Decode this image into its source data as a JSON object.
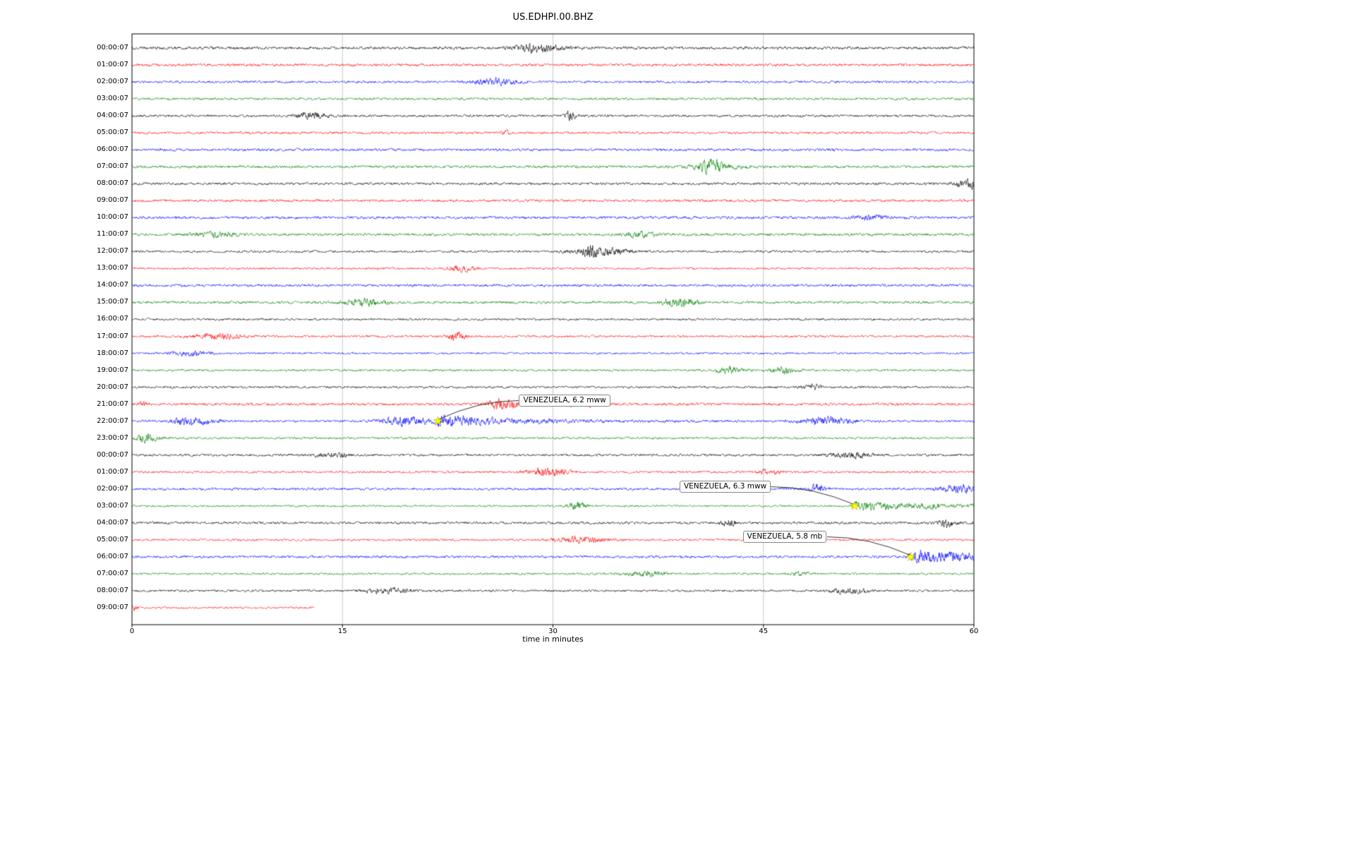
{
  "chart_data": {
    "type": "line",
    "subtype": "helicorder-day-plot",
    "title": "US.EDHPI.00.BHZ",
    "xlabel": "time in minutes",
    "x_range": [
      0,
      60
    ],
    "x_ticks": [
      0,
      15,
      30,
      45,
      60
    ],
    "grid": "vertical-only",
    "trace_color_cycle": [
      "#000000",
      "#ff0000",
      "#0000ff",
      "#008000"
    ],
    "marker_color": "#ffff00",
    "rows": [
      {
        "label": "00:00:07",
        "color": "#000000",
        "duration_minutes": 60
      },
      {
        "label": "01:00:07",
        "color": "#ff0000",
        "duration_minutes": 60
      },
      {
        "label": "02:00:07",
        "color": "#0000ff",
        "duration_minutes": 60
      },
      {
        "label": "03:00:07",
        "color": "#008000",
        "duration_minutes": 60
      },
      {
        "label": "04:00:07",
        "color": "#000000",
        "duration_minutes": 60
      },
      {
        "label": "05:00:07",
        "color": "#ff0000",
        "duration_minutes": 60
      },
      {
        "label": "06:00:07",
        "color": "#0000ff",
        "duration_minutes": 60
      },
      {
        "label": "07:00:07",
        "color": "#008000",
        "duration_minutes": 60
      },
      {
        "label": "08:00:07",
        "color": "#000000",
        "duration_minutes": 60
      },
      {
        "label": "09:00:07",
        "color": "#ff0000",
        "duration_minutes": 60
      },
      {
        "label": "10:00:07",
        "color": "#0000ff",
        "duration_minutes": 60
      },
      {
        "label": "11:00:07",
        "color": "#008000",
        "duration_minutes": 60
      },
      {
        "label": "12:00:07",
        "color": "#000000",
        "duration_minutes": 60
      },
      {
        "label": "13:00:07",
        "color": "#ff0000",
        "duration_minutes": 60
      },
      {
        "label": "14:00:07",
        "color": "#0000ff",
        "duration_minutes": 60
      },
      {
        "label": "15:00:07",
        "color": "#008000",
        "duration_minutes": 60
      },
      {
        "label": "16:00:07",
        "color": "#000000",
        "duration_minutes": 60
      },
      {
        "label": "17:00:07",
        "color": "#ff0000",
        "duration_minutes": 60
      },
      {
        "label": "18:00:07",
        "color": "#0000ff",
        "duration_minutes": 60
      },
      {
        "label": "19:00:07",
        "color": "#008000",
        "duration_minutes": 60
      },
      {
        "label": "20:00:07",
        "color": "#000000",
        "duration_minutes": 60
      },
      {
        "label": "21:00:07",
        "color": "#ff0000",
        "duration_minutes": 60
      },
      {
        "label": "22:00:07",
        "color": "#0000ff",
        "duration_minutes": 60
      },
      {
        "label": "23:00:07",
        "color": "#008000",
        "duration_minutes": 60
      },
      {
        "label": "00:00:07",
        "color": "#000000",
        "duration_minutes": 60
      },
      {
        "label": "01:00:07",
        "color": "#ff0000",
        "duration_minutes": 60
      },
      {
        "label": "02:00:07",
        "color": "#0000ff",
        "duration_minutes": 60
      },
      {
        "label": "03:00:07",
        "color": "#008000",
        "duration_minutes": 60
      },
      {
        "label": "04:00:07",
        "color": "#000000",
        "duration_minutes": 60
      },
      {
        "label": "05:00:07",
        "color": "#ff0000",
        "duration_minutes": 60
      },
      {
        "label": "06:00:07",
        "color": "#0000ff",
        "duration_minutes": 60
      },
      {
        "label": "07:00:07",
        "color": "#008000",
        "duration_minutes": 60
      },
      {
        "label": "08:00:07",
        "color": "#000000",
        "duration_minutes": 60
      },
      {
        "label": "09:00:07",
        "color": "#ff0000",
        "duration_minutes": 13
      }
    ],
    "events": [
      {
        "label": "VENEZUELA, 6.2 mww",
        "row_index": 22,
        "minute": 21.8,
        "label_offset": [
          115,
          -38
        ]
      },
      {
        "label": "VENEZUELA, 6.3 mww",
        "row_index": 27,
        "minute": 51.5,
        "label_offset": [
          -248,
          -36
        ]
      },
      {
        "label": "VENEZUELA, 5.8 mb",
        "row_index": 30,
        "minute": 55.5,
        "label_offset": [
          -238,
          -37
        ]
      }
    ]
  }
}
